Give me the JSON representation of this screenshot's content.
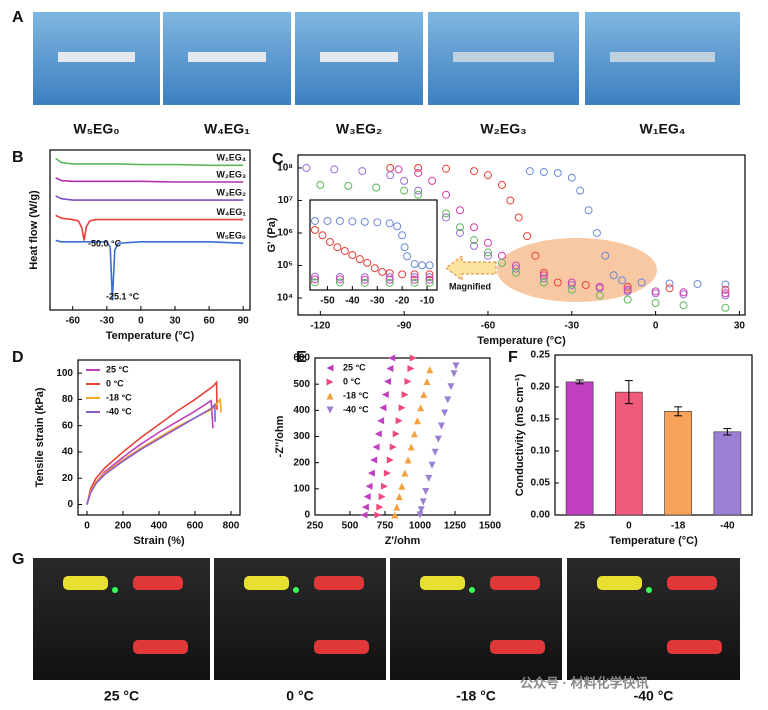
{
  "panel_labels": [
    "A",
    "B",
    "C",
    "D",
    "E",
    "F",
    "G"
  ],
  "photos_a": {
    "captions": [
      "W₅EG₀",
      "W₄EG₁",
      "W₃EG₂",
      "W₂EG₃",
      "W₁EG₄"
    ]
  },
  "photos_g": {
    "captions": [
      "25 °C",
      "0 °C",
      "-18 °C",
      "-40 °C"
    ]
  },
  "watermark": "公众号 · 材料化学快讯",
  "chart_data": [
    {
      "type": "line",
      "x_label": "Temperature (°C)",
      "y_label": "Heat flow (W/g)",
      "legend": "inline",
      "x": [
        -75,
        -70,
        -60,
        -55,
        -52,
        -50,
        -48,
        -45,
        -40,
        -30,
        -27,
        -25.1,
        -23,
        -20,
        0,
        30,
        60,
        90
      ],
      "xlim": [
        -80,
        96
      ],
      "ylim": [
        -1.5,
        10
      ],
      "xticks": [
        -60,
        -30,
        0,
        30,
        60,
        90
      ],
      "series": [
        {
          "name": "W₁EG₄",
          "color": "#5cb85c",
          "values": [
            9.4,
            9.1,
            9.0,
            9.0,
            9.0,
            9.0,
            9.0,
            9.0,
            9.0,
            9.0,
            9.0,
            9.0,
            9.0,
            9.0,
            8.95,
            8.95,
            8.9,
            8.9
          ]
        },
        {
          "name": "W₂EG₃",
          "color": "#b030b0",
          "values": [
            8.0,
            7.8,
            7.75,
            7.75,
            7.75,
            7.75,
            7.75,
            7.75,
            7.75,
            7.75,
            7.75,
            7.75,
            7.75,
            7.75,
            7.75,
            7.7,
            7.7,
            7.7
          ]
        },
        {
          "name": "W₃EG₂",
          "color": "#7b4fc9",
          "values": [
            6.7,
            6.5,
            6.4,
            6.4,
            6.4,
            6.4,
            6.4,
            6.4,
            6.4,
            6.4,
            6.4,
            6.4,
            6.4,
            6.4,
            6.4,
            6.4,
            6.4,
            6.4
          ]
        },
        {
          "name": "W₄EG₁",
          "color": "#e8403a",
          "values": [
            5.3,
            5.1,
            5.0,
            4.9,
            4.4,
            3.5,
            4.5,
            4.9,
            5.0,
            5.0,
            5.0,
            5.0,
            5.0,
            5.0,
            5.0,
            5.0,
            5.0,
            5.0
          ]
        },
        {
          "name": "W₅EG₀",
          "color": "#3a6fd0",
          "values": [
            3.5,
            3.4,
            3.4,
            3.4,
            3.4,
            3.4,
            3.4,
            3.4,
            3.4,
            3.4,
            3.0,
            -0.8,
            2.8,
            3.3,
            3.4,
            3.4,
            3.4,
            3.3
          ]
        }
      ],
      "annotations": [
        "-50.0 °C",
        "-25.1 °C"
      ]
    },
    {
      "type": "scatter",
      "x_label": "Temperature (°C)",
      "y_label": "G' (Pa)",
      "log_y": true,
      "xlim": [
        -128,
        32
      ],
      "ylim": [
        3000,
        250000000
      ],
      "xticks": [
        -120,
        -90,
        -60,
        -30,
        0,
        30
      ],
      "yticks": [
        {
          "value": 10000,
          "label": "10⁴"
        },
        {
          "value": 100000,
          "label": "10⁵"
        },
        {
          "value": 1000000,
          "label": "10⁶"
        },
        {
          "value": 10000000,
          "label": "10⁷"
        },
        {
          "value": 100000000,
          "label": "10⁸"
        }
      ],
      "series": [
        {
          "color": "#6b8ad6",
          "marker": "circle",
          "x": [
            -45,
            -40,
            -35,
            -30,
            -27,
            -24,
            -21,
            -18,
            -15,
            -12,
            -5,
            5,
            15,
            25
          ],
          "values": [
            80000000,
            75000000,
            70000000,
            50000000,
            20000000,
            5000000,
            1000000,
            200000,
            50000,
            35000,
            30000,
            28000,
            27000,
            26000
          ]
        },
        {
          "color": "#e8403a",
          "marker": "circle",
          "x": [
            -95,
            -85,
            -75,
            -65,
            -60,
            -55,
            -52,
            -49,
            -46,
            -43,
            -40,
            -35,
            -25,
            -10,
            5,
            25
          ],
          "values": [
            100000000,
            100000000,
            95000000,
            80000000,
            60000000,
            30000000,
            10000000,
            3000000,
            800000,
            200000,
            60000,
            30000,
            25000,
            22000,
            20000,
            18000
          ]
        },
        {
          "color": "#9b6fd4",
          "marker": "circle",
          "x": [
            -125,
            -115,
            -105,
            -95,
            -90,
            -85,
            -80,
            -75,
            -70,
            -65,
            -60,
            -50,
            -40,
            -30,
            -20,
            -10,
            0,
            10,
            25
          ],
          "values": [
            100000000,
            90000000,
            80000000,
            60000000,
            40000000,
            20000000,
            8000000,
            3000000,
            1000000,
            400000,
            200000,
            80000,
            40000,
            25000,
            20000,
            16000,
            14000,
            13000,
            12000
          ]
        },
        {
          "color": "#d63fb0",
          "marker": "circle",
          "x": [
            -92,
            -85,
            -80,
            -75,
            -70,
            -65,
            -60,
            -55,
            -50,
            -40,
            -30,
            -20,
            -10,
            0,
            10,
            25
          ],
          "values": [
            90000000,
            70000000,
            40000000,
            15000000,
            5000000,
            1500000,
            500000,
            200000,
            100000,
            50000,
            30000,
            22000,
            18000,
            16000,
            15000,
            14000
          ]
        },
        {
          "color": "#5cb85c",
          "marker": "circle",
          "x": [
            -120,
            -110,
            -100,
            -90,
            -85,
            -80,
            -75,
            -70,
            -65,
            -60,
            -55,
            -50,
            -40,
            -30,
            -20,
            -10,
            0,
            10,
            25
          ],
          "values": [
            30000000,
            28000000,
            25000000,
            20000000,
            15000000,
            8000000,
            4000000,
            1500000,
            600000,
            250000,
            120000,
            60000,
            30000,
            18000,
            12000,
            9000,
            7000,
            6000,
            5000
          ]
        }
      ]
    },
    {
      "type": "scatter",
      "log_y": true,
      "xlim": [
        -57,
        -6
      ],
      "ylim": [
        15000,
        15000000
      ],
      "xticks": [
        -50,
        -40,
        -30,
        -20,
        -10
      ],
      "series": [
        {
          "color": "#6b8ad6",
          "marker": "circle",
          "x": [
            -55,
            -50,
            -45,
            -40,
            -35,
            -30,
            -25,
            -22,
            -20,
            -19,
            -18,
            -15,
            -12,
            -9
          ],
          "values": [
            3000000,
            3000000,
            3000000,
            2900000,
            2800000,
            2700000,
            2500000,
            2000000,
            1000000,
            400000,
            200000,
            110000,
            100000,
            100000
          ]
        },
        {
          "color": "#e8403a",
          "marker": "circle",
          "x": [
            -55,
            -52,
            -49,
            -46,
            -43,
            -40,
            -37,
            -34,
            -31,
            -28,
            -25,
            -20,
            -15,
            -9
          ],
          "values": [
            1500000,
            1000000,
            600000,
            400000,
            300000,
            220000,
            160000,
            120000,
            80000,
            60000,
            55000,
            50000,
            50000,
            50000
          ]
        },
        {
          "color": "#9b6fd4",
          "marker": "circle",
          "x": [
            -55,
            -45,
            -35,
            -25,
            -15,
            -9
          ],
          "values": [
            42000,
            41000,
            40000,
            40000,
            40000,
            40000
          ]
        },
        {
          "color": "#d63fb0",
          "marker": "circle",
          "x": [
            -55,
            -45,
            -35,
            -25,
            -15,
            -9
          ],
          "values": [
            34000,
            34000,
            33000,
            33000,
            33000,
            33000
          ]
        },
        {
          "color": "#5cb85c",
          "marker": "circle",
          "x": [
            -55,
            -45,
            -35,
            -25,
            -15,
            -9
          ],
          "values": [
            27000,
            27000,
            26000,
            26000,
            26000,
            26000
          ]
        }
      ],
      "annotations": [
        "Magnified"
      ]
    },
    {
      "type": "line",
      "x_label": "Strain (%)",
      "y_label": "Tensile strain (kPa)",
      "legend": "upper left",
      "xlim": [
        -50,
        850
      ],
      "ylim": [
        -8,
        110
      ],
      "xticks": [
        0,
        200,
        400,
        600,
        800
      ],
      "yticks": [
        0,
        20,
        40,
        60,
        80,
        100
      ],
      "series": [
        {
          "name": "25 °C",
          "color": "#c03fc0",
          "x": [
            0,
            20,
            50,
            100,
            200,
            300,
            400,
            500,
            600,
            690,
            700
          ],
          "values": [
            0,
            10,
            17,
            25,
            36,
            46,
            55,
            63,
            71,
            79,
            58
          ]
        },
        {
          "name": "0 °C",
          "color": "#e8403a",
          "x": [
            0,
            20,
            50,
            100,
            200,
            300,
            400,
            500,
            600,
            700,
            720,
            722
          ],
          "values": [
            0,
            12,
            20,
            28,
            40,
            51,
            61,
            71,
            80,
            90,
            93,
            72
          ]
        },
        {
          "name": "-18 °C",
          "color": "#f5a623",
          "x": [
            0,
            20,
            50,
            100,
            200,
            300,
            400,
            500,
            600,
            700,
            740,
            745
          ],
          "values": [
            0,
            10,
            17,
            24,
            34,
            43,
            51,
            59,
            66,
            73,
            80,
            70
          ]
        },
        {
          "name": "-40 °C",
          "color": "#8a5cd0",
          "x": [
            0,
            20,
            50,
            100,
            200,
            300,
            400,
            500,
            600,
            690,
            710,
            712
          ],
          "values": [
            0,
            9,
            16,
            23,
            33,
            42,
            50,
            58,
            66,
            73,
            76,
            63
          ]
        }
      ]
    },
    {
      "type": "scatter",
      "x_label": "Z'/ohm",
      "y_label": "-Z''/ohm",
      "legend": "upper left",
      "xlim": [
        250,
        1500
      ],
      "ylim": [
        0,
        600
      ],
      "xticks": [
        250,
        500,
        750,
        1000,
        1250,
        1500
      ],
      "yticks": [
        0,
        100,
        200,
        300,
        400,
        500,
        600
      ],
      "series": [
        {
          "name": "25 °C",
          "color": "#c03fc0",
          "marker": "triangle-left",
          "x": [
            600,
            610,
            623,
            636,
            653,
            669,
            686,
            702,
            719,
            735,
            752,
            768,
            785,
            798
          ],
          "values": [
            0,
            30,
            70,
            110,
            160,
            210,
            260,
            310,
            360,
            410,
            460,
            510,
            560,
            600
          ]
        },
        {
          "name": "0 °C",
          "color": "#ef4a7a",
          "marker": "triangle-right",
          "x": [
            700,
            713,
            729,
            746,
            767,
            788,
            809,
            830,
            851,
            872,
            893,
            914,
            935,
            952
          ],
          "values": [
            0,
            30,
            70,
            110,
            160,
            210,
            260,
            310,
            360,
            410,
            460,
            510,
            560,
            600
          ]
        },
        {
          "name": "-18 °C",
          "color": "#f5a040",
          "marker": "triangle-up",
          "x": [
            820,
            834,
            852,
            870,
            892,
            915,
            937,
            960,
            982,
            1005,
            1027,
            1050,
            1070
          ],
          "values": [
            0,
            30,
            70,
            110,
            160,
            210,
            260,
            310,
            360,
            410,
            460,
            510,
            555
          ]
        },
        {
          "name": "-40 °C",
          "color": "#9b7fd4",
          "marker": "triangle-down",
          "x": [
            1000,
            1009,
            1023,
            1041,
            1063,
            1086,
            1108,
            1131,
            1153,
            1176,
            1198,
            1221,
            1243,
            1257
          ],
          "values": [
            0,
            20,
            50,
            90,
            140,
            190,
            240,
            290,
            340,
            390,
            440,
            490,
            540,
            570
          ]
        }
      ]
    },
    {
      "type": "bar",
      "x_label": "Temperature (°C)",
      "y_label": "Conductivity (mS cm⁻¹)",
      "categories": [
        "25",
        "0",
        "-18",
        "-40"
      ],
      "values": [
        0.208,
        0.192,
        0.162,
        0.13
      ],
      "errors": [
        0.003,
        0.018,
        0.007,
        0.005
      ],
      "colors": [
        "#c03fc0",
        "#ef5b7a",
        "#f7a35c",
        "#9b7fd4"
      ],
      "ylim": [
        0,
        0.25
      ],
      "yticks": [
        {
          "value": 0,
          "label": "0.00"
        },
        {
          "value": 0.05,
          "label": "0.05"
        },
        {
          "value": 0.1,
          "label": "0.10"
        },
        {
          "value": 0.15,
          "label": "0.15"
        },
        {
          "value": 0.2,
          "label": "0.20"
        },
        {
          "value": 0.25,
          "label": "0.25"
        }
      ]
    }
  ]
}
